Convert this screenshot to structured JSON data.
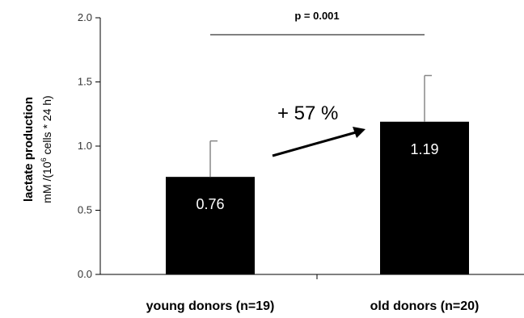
{
  "chart_data": {
    "type": "bar",
    "categories": [
      "young donors (n=19)",
      "old donors (n=20)"
    ],
    "values": [
      0.76,
      1.19
    ],
    "error_upper": [
      1.04,
      1.55
    ],
    "data_labels": [
      "0.76",
      "1.19"
    ],
    "ylabel_line1": "lactate production",
    "ylabel_line2_prefix": "mM /(10",
    "ylabel_line2_sup": "6",
    "ylabel_line2_suffix": " cells * 24 h)",
    "ylim": [
      0,
      2.0
    ],
    "yticks": [
      "0.0",
      "0.5",
      "1.0",
      "1.5",
      "2.0"
    ],
    "ytick_values": [
      0,
      0.5,
      1.0,
      1.5,
      2.0
    ],
    "bar_color": "#000000",
    "annotations": {
      "significance": "p = 0.001",
      "increase": "+ 57 %"
    }
  }
}
